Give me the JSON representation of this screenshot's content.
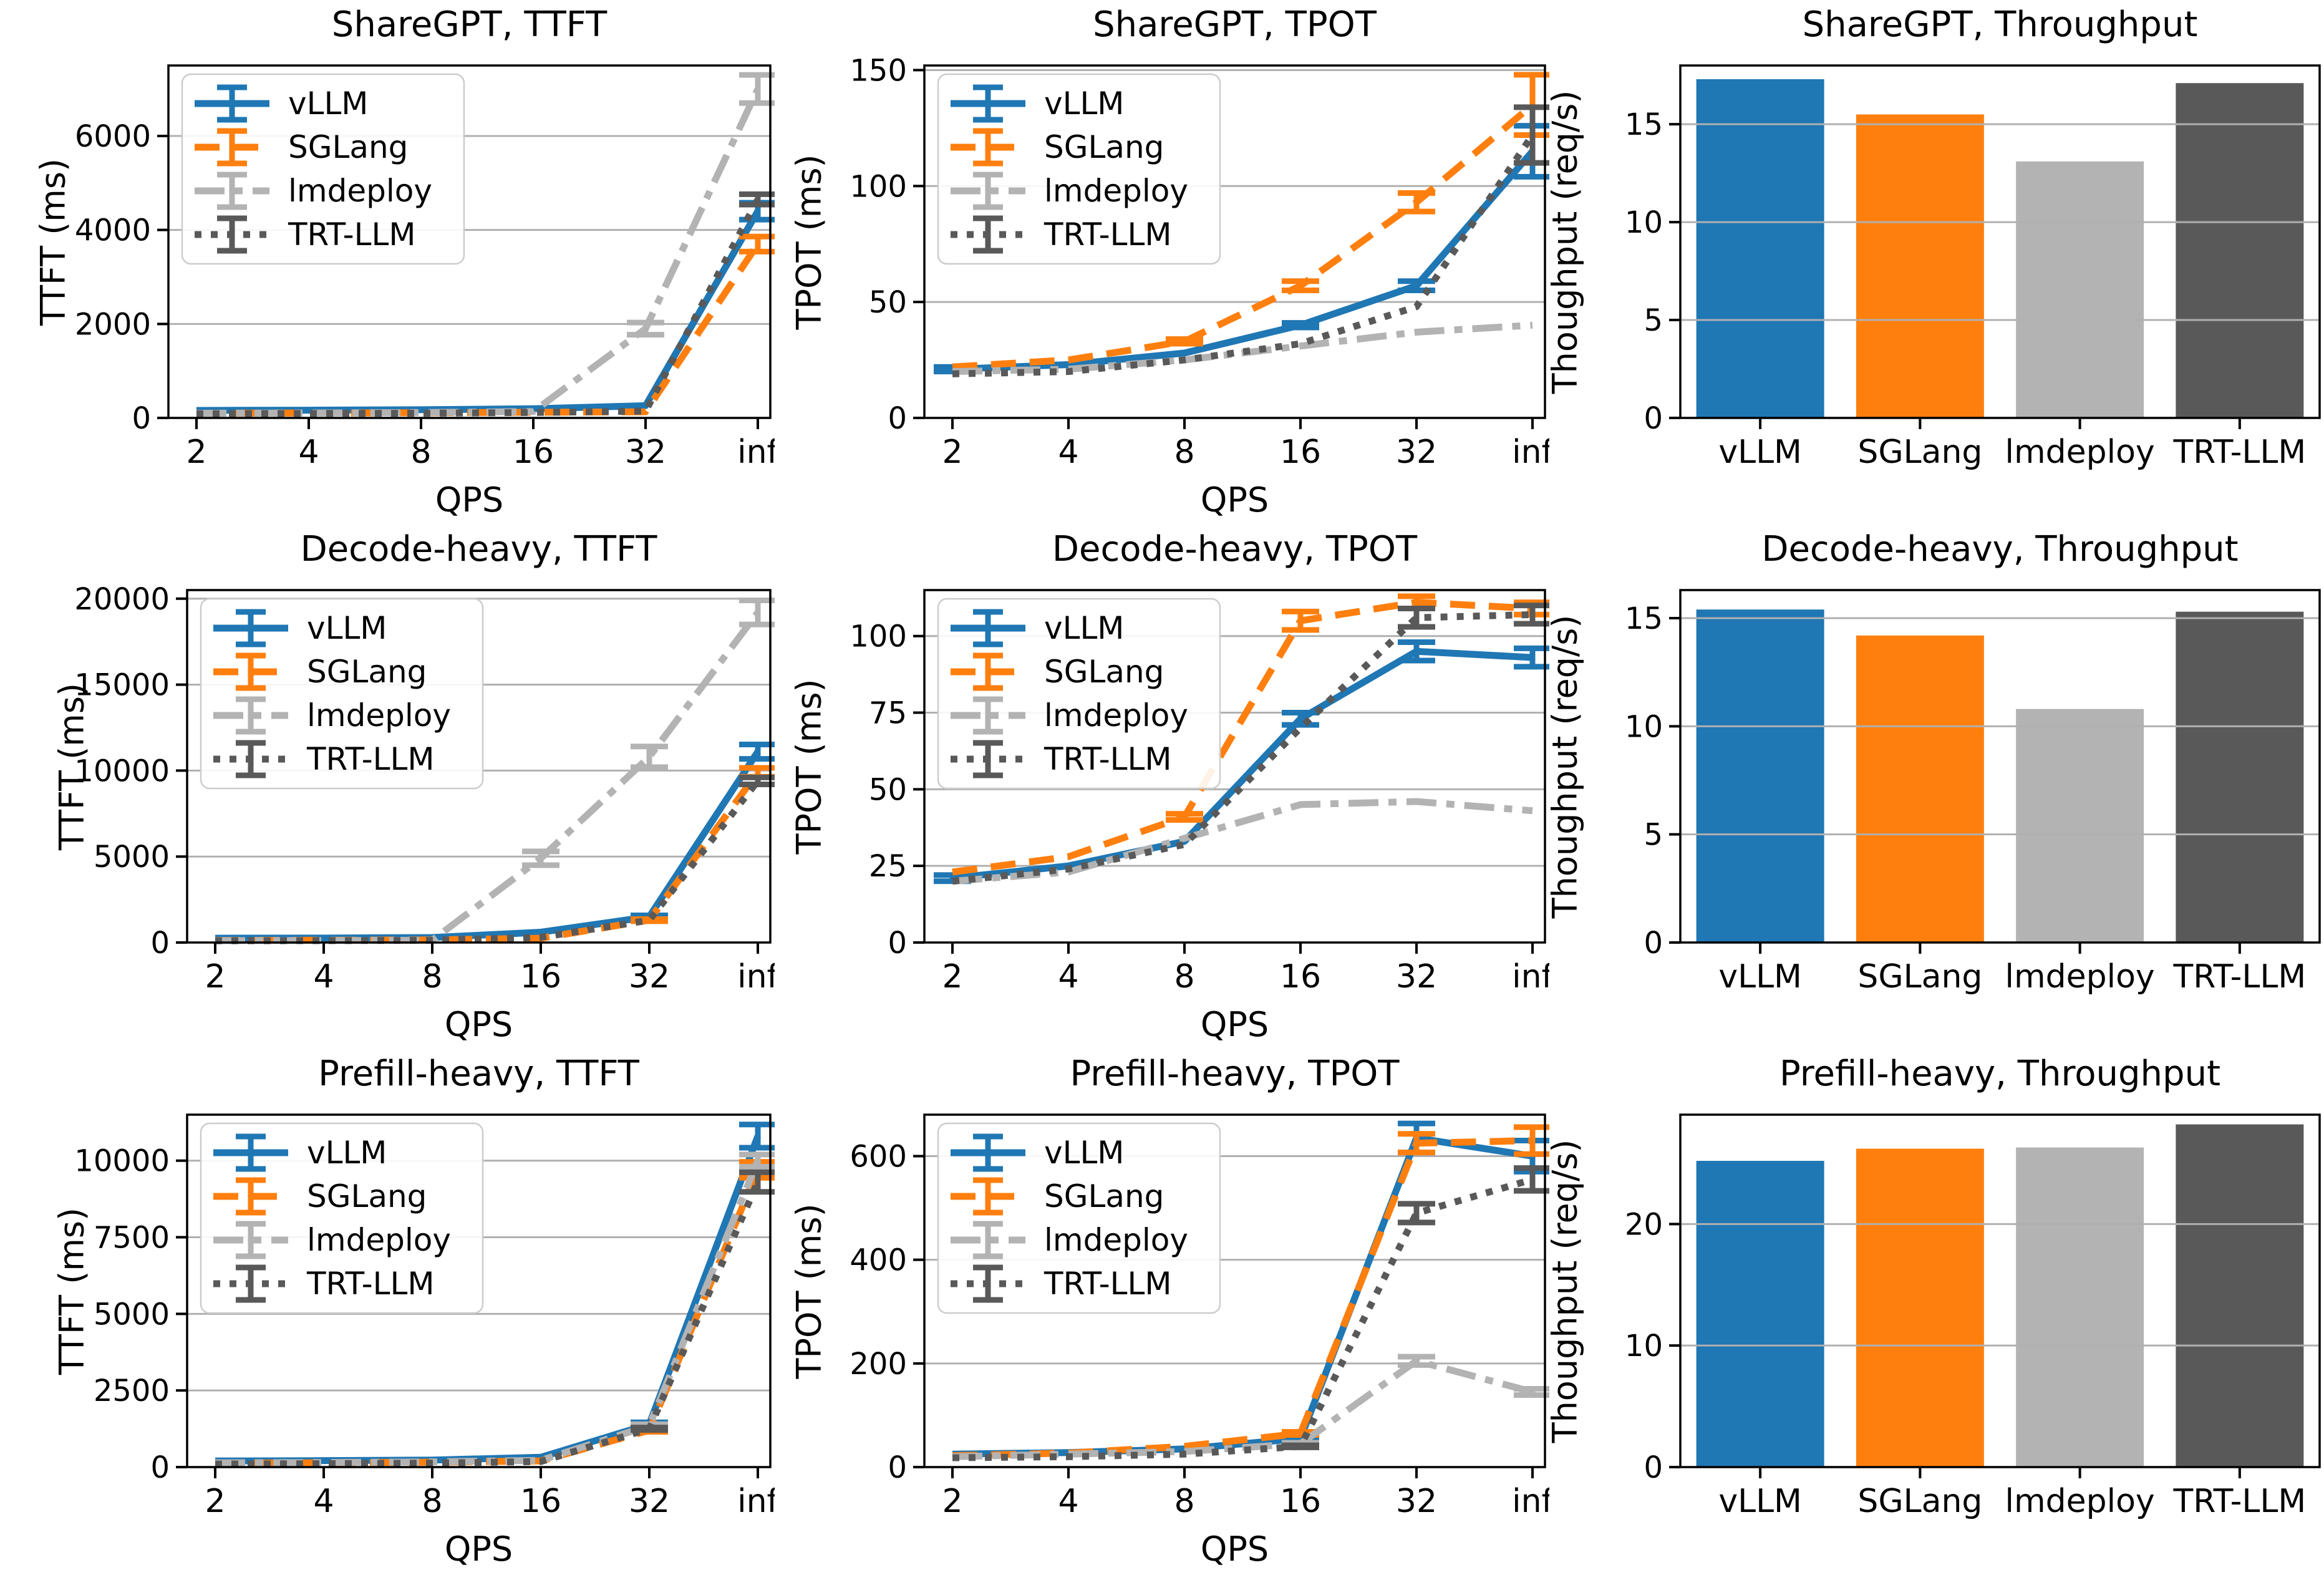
{
  "colors": {
    "vllm": "#1f77b4",
    "sglang": "#ff7f0e",
    "lmdeploy": "#b3b3b3",
    "trtllm": "#595959",
    "grid": "#b0b0b0",
    "spine": "#000000",
    "legend_border": "#cccccc",
    "background": "#ffffff"
  },
  "chart_data": [
    {
      "type": "line",
      "title": "ShareGPT, TTFT",
      "xlabel": "QPS",
      "ylabel": "TTFT (ms)",
      "x_ticklabels": [
        "2",
        "4",
        "8",
        "16",
        "32",
        "inf"
      ],
      "ylim": [
        0,
        7500
      ],
      "yticks": [
        0,
        2000,
        4000,
        6000
      ],
      "grid": "horizontal",
      "legend_position": "upper-left",
      "series": [
        {
          "name": "vLLM",
          "color_key": "vllm",
          "style": "solid",
          "values": [
            160,
            165,
            175,
            195,
            260,
            4400
          ],
          "err": [
            0,
            0,
            0,
            0,
            0,
            180
          ]
        },
        {
          "name": "SGLang",
          "color_key": "sglang",
          "style": "dashed",
          "values": [
            100,
            105,
            110,
            120,
            130,
            3700
          ],
          "err": [
            0,
            0,
            0,
            0,
            0,
            160
          ]
        },
        {
          "name": "lmdeploy",
          "color_key": "lmdeploy",
          "style": "dashdot",
          "values": [
            100,
            105,
            115,
            135,
            1900,
            7000
          ],
          "err": [
            0,
            0,
            0,
            0,
            130,
            300
          ]
        },
        {
          "name": "TRT-LLM",
          "color_key": "trtllm",
          "style": "dotted",
          "values": [
            90,
            95,
            100,
            115,
            145,
            4650
          ],
          "err": [
            0,
            0,
            0,
            0,
            0,
            110
          ]
        }
      ]
    },
    {
      "type": "line",
      "title": "ShareGPT, TPOT",
      "xlabel": "QPS",
      "ylabel": "TPOT (ms)",
      "x_ticklabels": [
        "2",
        "4",
        "8",
        "16",
        "32",
        "inf"
      ],
      "ylim": [
        0,
        152
      ],
      "yticks": [
        0,
        50,
        100,
        150
      ],
      "grid": "horizontal",
      "legend_position": "upper-left",
      "series": [
        {
          "name": "vLLM",
          "color_key": "vllm",
          "style": "solid",
          "values": [
            21,
            23,
            28,
            40,
            57,
            115
          ],
          "err": [
            1,
            0,
            0,
            1,
            2,
            11
          ]
        },
        {
          "name": "SGLang",
          "color_key": "sglang",
          "style": "dashed",
          "values": [
            22,
            25,
            33,
            57,
            93,
            135
          ],
          "err": [
            0,
            0,
            1,
            2,
            4,
            13
          ]
        },
        {
          "name": "lmdeploy",
          "color_key": "lmdeploy",
          "style": "dashdot",
          "values": [
            20,
            21,
            25,
            31,
            37,
            40
          ],
          "err": [
            0,
            0,
            0,
            0,
            0,
            0
          ]
        },
        {
          "name": "TRT-LLM",
          "color_key": "trtllm",
          "style": "dotted",
          "values": [
            19,
            20,
            25,
            32,
            48,
            122
          ],
          "err": [
            0,
            0,
            0,
            0,
            0,
            12
          ]
        }
      ]
    },
    {
      "type": "bar",
      "title": "ShareGPT, Throughput",
      "ylabel": "Thoughput (req/s)",
      "categories": [
        "vLLM",
        "SGLang",
        "lmdeploy",
        "TRT-LLM"
      ],
      "values": [
        17.3,
        15.5,
        13.1,
        17.1
      ],
      "color_keys": [
        "vllm",
        "sglang",
        "lmdeploy",
        "trtllm"
      ],
      "ylim": [
        0,
        18
      ],
      "yticks": [
        0,
        5,
        10,
        15
      ],
      "grid": "horizontal"
    },
    {
      "type": "line",
      "title": "Decode-heavy, TTFT",
      "xlabel": "QPS",
      "ylabel": "TTFT (ms)",
      "x_ticklabels": [
        "2",
        "4",
        "8",
        "16",
        "32",
        "inf"
      ],
      "ylim": [
        0,
        20500
      ],
      "yticks": [
        0,
        5000,
        10000,
        15000,
        20000
      ],
      "grid": "horizontal",
      "legend_position": "upper-left",
      "series": [
        {
          "name": "vLLM",
          "color_key": "vllm",
          "style": "solid",
          "values": [
            250,
            260,
            290,
            600,
            1500,
            11100
          ],
          "err": [
            0,
            0,
            0,
            0,
            80,
            420
          ]
        },
        {
          "name": "SGLang",
          "color_key": "sglang",
          "style": "dashed",
          "values": [
            120,
            130,
            150,
            250,
            1300,
            9900
          ],
          "err": [
            0,
            0,
            0,
            0,
            60,
            260
          ]
        },
        {
          "name": "lmdeploy",
          "color_key": "lmdeploy",
          "style": "dashdot",
          "values": [
            110,
            115,
            130,
            4900,
            10800,
            19200
          ],
          "err": [
            0,
            0,
            0,
            400,
            600,
            700
          ]
        },
        {
          "name": "TRT-LLM",
          "color_key": "trtllm",
          "style": "dotted",
          "values": [
            100,
            110,
            130,
            300,
            1300,
            9400
          ],
          "err": [
            0,
            0,
            0,
            0,
            0,
            200
          ]
        }
      ]
    },
    {
      "type": "line",
      "title": "Decode-heavy, TPOT",
      "xlabel": "QPS",
      "ylabel": "TPOT (ms)",
      "x_ticklabels": [
        "2",
        "4",
        "8",
        "16",
        "32",
        "inf"
      ],
      "ylim": [
        0,
        115
      ],
      "yticks": [
        0,
        25,
        50,
        75,
        100
      ],
      "grid": "horizontal",
      "legend_position": "upper-left",
      "series": [
        {
          "name": "vLLM",
          "color_key": "vllm",
          "style": "solid",
          "values": [
            21,
            25,
            33,
            73,
            95,
            93
          ],
          "err": [
            1,
            0,
            0,
            2,
            3,
            3
          ]
        },
        {
          "name": "SGLang",
          "color_key": "sglang",
          "style": "dashed",
          "values": [
            23,
            28,
            41,
            105,
            111,
            109
          ],
          "err": [
            0,
            0,
            1,
            3,
            2,
            2
          ]
        },
        {
          "name": "lmdeploy",
          "color_key": "lmdeploy",
          "style": "dashdot",
          "values": [
            20,
            23,
            34,
            45,
            46,
            43
          ],
          "err": [
            0,
            0,
            0,
            0,
            0,
            0
          ]
        },
        {
          "name": "TRT-LLM",
          "color_key": "trtllm",
          "style": "dotted",
          "values": [
            20,
            24,
            32,
            70,
            106,
            107
          ],
          "err": [
            0,
            0,
            0,
            0,
            3,
            3
          ]
        }
      ]
    },
    {
      "type": "bar",
      "title": "Decode-heavy, Throughput",
      "ylabel": "Thoughput (req/s)",
      "categories": [
        "vLLM",
        "SGLang",
        "lmdeploy",
        "TRT-LLM"
      ],
      "values": [
        15.4,
        14.2,
        10.8,
        15.3
      ],
      "color_keys": [
        "vllm",
        "sglang",
        "lmdeploy",
        "trtllm"
      ],
      "ylim": [
        0,
        16.3
      ],
      "yticks": [
        0,
        5,
        10,
        15
      ],
      "grid": "horizontal"
    },
    {
      "type": "line",
      "title": "Prefill-heavy, TTFT",
      "xlabel": "QPS",
      "ylabel": "TTFT (ms)",
      "x_ticklabels": [
        "2",
        "4",
        "8",
        "16",
        "32",
        "inf"
      ],
      "ylim": [
        0,
        11500
      ],
      "yticks": [
        0,
        2500,
        5000,
        7500,
        10000
      ],
      "grid": "horizontal",
      "legend_position": "upper-left",
      "series": [
        {
          "name": "vLLM",
          "color_key": "vllm",
          "style": "solid",
          "values": [
            200,
            210,
            230,
            320,
            1400,
            10800
          ],
          "err": [
            0,
            0,
            0,
            0,
            60,
            380
          ]
        },
        {
          "name": "SGLang",
          "color_key": "sglang",
          "style": "dashed",
          "values": [
            130,
            140,
            160,
            200,
            1200,
            9700
          ],
          "err": [
            0,
            0,
            0,
            0,
            50,
            260
          ]
        },
        {
          "name": "lmdeploy",
          "color_key": "lmdeploy",
          "style": "dashdot",
          "values": [
            140,
            150,
            170,
            220,
            1350,
            10000
          ],
          "err": [
            0,
            0,
            0,
            0,
            50,
            200
          ]
        },
        {
          "name": "TRT-LLM",
          "color_key": "trtllm",
          "style": "dotted",
          "values": [
            100,
            110,
            130,
            180,
            1250,
            9300
          ],
          "err": [
            0,
            0,
            0,
            0,
            40,
            320
          ]
        }
      ]
    },
    {
      "type": "line",
      "title": "Prefill-heavy, TPOT",
      "xlabel": "QPS",
      "ylabel": "TPOT (ms)",
      "x_ticklabels": [
        "2",
        "4",
        "8",
        "16",
        "32",
        "inf"
      ],
      "ylim": [
        0,
        680
      ],
      "yticks": [
        0,
        200,
        400,
        600
      ],
      "grid": "horizontal",
      "legend_position": "upper-left",
      "series": [
        {
          "name": "vLLM",
          "color_key": "vllm",
          "style": "solid",
          "values": [
            25,
            28,
            35,
            55,
            635,
            600
          ],
          "err": [
            0,
            0,
            0,
            3,
            28,
            30
          ]
        },
        {
          "name": "SGLang",
          "color_key": "sglang",
          "style": "dashed",
          "values": [
            22,
            27,
            40,
            65,
            625,
            630
          ],
          "err": [
            0,
            0,
            0,
            3,
            18,
            26
          ]
        },
        {
          "name": "lmdeploy",
          "color_key": "lmdeploy",
          "style": "dashdot",
          "values": [
            20,
            25,
            30,
            45,
            205,
            145
          ],
          "err": [
            0,
            0,
            0,
            2,
            8,
            6
          ]
        },
        {
          "name": "TRT-LLM",
          "color_key": "trtllm",
          "style": "dotted",
          "values": [
            18,
            20,
            25,
            40,
            490,
            555
          ],
          "err": [
            0,
            0,
            0,
            2,
            18,
            22
          ]
        }
      ]
    },
    {
      "type": "bar",
      "title": "Prefill-heavy, Throughput",
      "ylabel": "Thoughput (req/s)",
      "categories": [
        "vLLM",
        "SGLang",
        "lmdeploy",
        "TRT-LLM"
      ],
      "values": [
        25.2,
        26.2,
        26.3,
        28.2
      ],
      "color_keys": [
        "vllm",
        "sglang",
        "lmdeploy",
        "trtllm"
      ],
      "ylim": [
        0,
        29
      ],
      "yticks": [
        0,
        10,
        20
      ],
      "grid": "horizontal"
    }
  ]
}
